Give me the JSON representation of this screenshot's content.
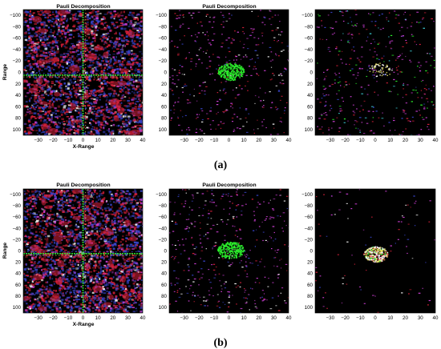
{
  "figure": {
    "rows": [
      {
        "caption": "(a)",
        "panels": [
          {
            "title": "Pauli Decomposition",
            "xlabel": "X-Range",
            "ylabel": "Range",
            "variant": "full"
          },
          {
            "title": "Pauli Decomposition",
            "xlabel": "",
            "ylabel": "",
            "variant": "sparse-green"
          },
          {
            "title": "",
            "xlabel": "",
            "ylabel": "",
            "variant": "sparse-mixed"
          }
        ]
      },
      {
        "caption": "(b)",
        "panels": [
          {
            "title": "Pauli Decomposition",
            "xlabel": "X-Range",
            "ylabel": "Range",
            "variant": "full"
          },
          {
            "title": "Pauli Decomposition",
            "xlabel": "",
            "ylabel": "",
            "variant": "sparse-green"
          },
          {
            "title": "",
            "xlabel": "",
            "ylabel": "",
            "variant": "center-blob"
          }
        ]
      }
    ],
    "axes": {
      "xticks": [
        -30,
        -20,
        -10,
        0,
        10,
        20,
        30,
        40
      ],
      "yticks": [
        -100,
        -80,
        -60,
        -40,
        -20,
        0,
        20,
        40,
        60,
        80,
        100
      ],
      "xlim": [
        -40,
        40
      ],
      "ylim": [
        -110,
        110
      ]
    },
    "colors": {
      "red": "#d8203a",
      "blue": "#3a46d0",
      "green": "#2cf02c",
      "magenta": "#d040d8",
      "white": "#ffffff",
      "yellow": "#e8e060",
      "cyan": "#40d8e0",
      "background": "#000000"
    }
  }
}
